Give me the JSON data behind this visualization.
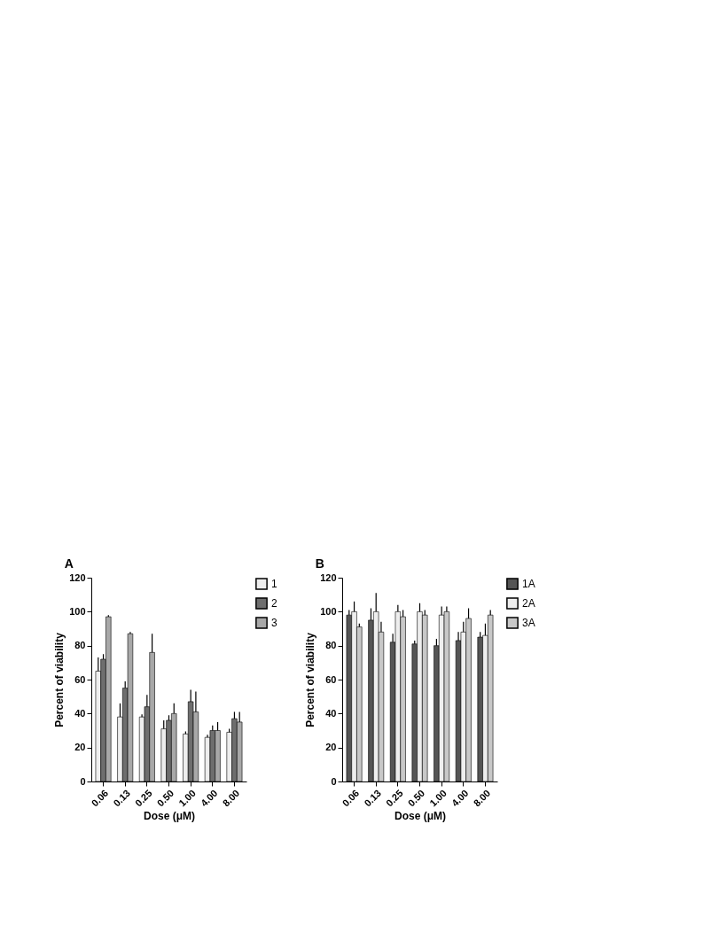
{
  "chart_data": [
    {
      "type": "bar",
      "title": "A",
      "xlabel": "Dose (μM)",
      "ylabel": "Percent of viability",
      "categories": [
        "0.06",
        "0.13",
        "0.25",
        "0.50",
        "1.00",
        "4.00",
        "8.00"
      ],
      "ylim": [
        0,
        120
      ],
      "yticks": [
        0,
        20,
        40,
        60,
        80,
        100,
        120
      ],
      "grid": false,
      "legend": "top right",
      "series": [
        {
          "name": "1",
          "color": "#eeeeee",
          "values": [
            65,
            38,
            38,
            31,
            28,
            26,
            29
          ],
          "errors": [
            [
              65,
              73
            ],
            [
              38,
              46
            ],
            [
              38,
              39.5
            ],
            [
              31,
              36
            ],
            [
              28,
              29.5
            ],
            [
              26,
              27.5
            ],
            [
              29,
              31
            ]
          ]
        },
        {
          "name": "2",
          "color": "#6e6e6e",
          "values": [
            72,
            55,
            44,
            36,
            47,
            30,
            37
          ],
          "errors": [
            [
              72,
              75
            ],
            [
              55,
              59
            ],
            [
              44,
              51
            ],
            [
              36,
              39
            ],
            [
              47,
              54
            ],
            [
              30,
              33
            ],
            [
              37,
              41
            ]
          ]
        },
        {
          "name": "3",
          "color": "#a8a8a8",
          "values": [
            97,
            87,
            76,
            40,
            41,
            30,
            35
          ],
          "errors": [
            [
              97,
              98
            ],
            [
              87,
              88
            ],
            [
              76,
              87
            ],
            [
              40,
              46
            ],
            [
              41,
              53
            ],
            [
              30,
              35
            ],
            [
              35,
              41
            ]
          ]
        }
      ]
    },
    {
      "type": "bar",
      "title": "B",
      "xlabel": "Dose (μM)",
      "ylabel": "Percent of viability",
      "categories": [
        "0.06",
        "0.13",
        "0.25",
        "0.50",
        "1.00",
        "4.00",
        "8.00"
      ],
      "ylim": [
        0,
        120
      ],
      "yticks": [
        0,
        20,
        40,
        60,
        80,
        100,
        120
      ],
      "grid": false,
      "legend": "top right",
      "series": [
        {
          "name": "1A",
          "color": "#555555",
          "values": [
            98,
            95,
            82,
            81,
            80,
            83,
            85
          ],
          "errors": [
            [
              98,
              101
            ],
            [
              95,
              102
            ],
            [
              82,
              87
            ],
            [
              81,
              83
            ],
            [
              80,
              84
            ],
            [
              83,
              88
            ],
            [
              85,
              88
            ]
          ]
        },
        {
          "name": "2A",
          "color": "#eeeeee",
          "values": [
            100,
            100,
            100,
            100,
            98,
            88,
            86
          ],
          "errors": [
            [
              100,
              106
            ],
            [
              100,
              111
            ],
            [
              100,
              104
            ],
            [
              100,
              105
            ],
            [
              98,
              103
            ],
            [
              88,
              94
            ],
            [
              86,
              93
            ]
          ]
        },
        {
          "name": "3A",
          "color": "#c8c8c8",
          "values": [
            91,
            88,
            97,
            98,
            100,
            96,
            98
          ],
          "errors": [
            [
              91,
              93
            ],
            [
              88,
              94
            ],
            [
              97,
              101
            ],
            [
              98,
              101
            ],
            [
              100,
              103
            ],
            [
              96,
              102
            ],
            [
              98,
              101
            ]
          ]
        }
      ]
    }
  ]
}
